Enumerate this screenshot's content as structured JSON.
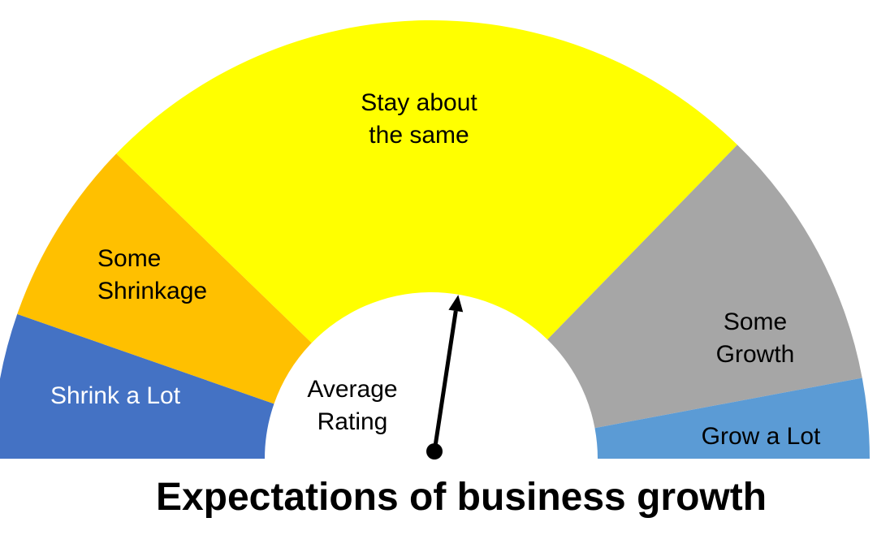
{
  "chart_data": {
    "type": "gauge",
    "title": "Expectations of business growth",
    "segments": [
      {
        "label": [
          "Shrink a Lot"
        ],
        "share": 0.107,
        "color": "#4472C4",
        "text_color": "#ffffff"
      },
      {
        "label": [
          "Some",
          "Shrinkage"
        ],
        "share": 0.138,
        "color": "#FFC000",
        "text_color": "#000000"
      },
      {
        "label": [
          "Stay about",
          "the same"
        ],
        "share": 0.501,
        "color": "#FFFF00",
        "text_color": "#000000"
      },
      {
        "label": [
          "Some",
          "Growth"
        ],
        "share": 0.195,
        "color": "#A6A6A6",
        "text_color": "#000000"
      },
      {
        "label": [
          "Grow a Lot"
        ],
        "share": 0.059,
        "color": "#5B9BD5",
        "text_color": "#000000"
      }
    ],
    "needle": {
      "label": [
        "Average",
        "Rating"
      ],
      "value": 0.548,
      "color": "#000000"
    }
  }
}
